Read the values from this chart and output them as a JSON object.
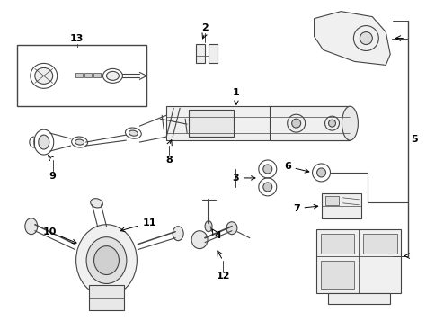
{
  "background_color": "#ffffff",
  "line_color": "#444444",
  "fig_width": 4.85,
  "fig_height": 3.57,
  "dpi": 100
}
